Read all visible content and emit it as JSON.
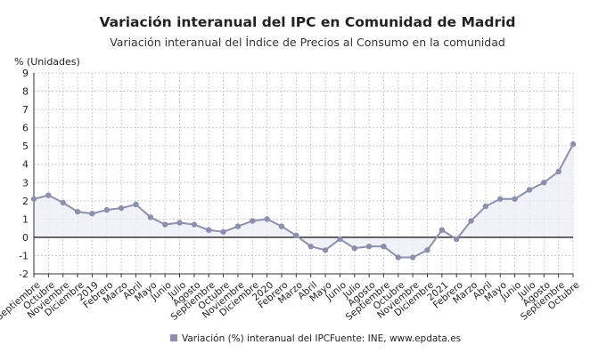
{
  "chart_data": {
    "type": "line",
    "title": "Variación interanual del IPC en Comunidad de Madrid",
    "subtitle": "Variación interanual del Índice de Precios al Consumo en la comunidad",
    "ylabel": "% (Unidades)",
    "ylim": [
      -2,
      9
    ],
    "yticks": [
      -2,
      -1,
      0,
      1,
      2,
      3,
      4,
      5,
      6,
      7,
      8,
      9
    ],
    "grid": true,
    "categories": [
      "Septiembre",
      "Octubre",
      "Noviembre",
      "Diciembre",
      "2019",
      "Febrero",
      "Marzo",
      "Abril",
      "Mayo",
      "Junio",
      "Julio",
      "Agosto",
      "Septiembre",
      "Octubre",
      "Noviembre",
      "Diciembre",
      "2020",
      "Febrero",
      "Marzo",
      "Abril",
      "Mayo",
      "Junio",
      "Julio",
      "Agosto",
      "Septiembre",
      "Octubre",
      "Noviembre",
      "Diciembre",
      "2021",
      "Febrero",
      "Marzo",
      "Abril",
      "Mayo",
      "Junio",
      "Julio",
      "Agosto",
      "Septiembre",
      "Octubre"
    ],
    "series": [
      {
        "name": "Variación (%) interanual del IPC",
        "color": "#8c8fb0",
        "values": [
          2.1,
          2.3,
          1.9,
          1.4,
          1.3,
          1.5,
          1.6,
          1.8,
          1.1,
          0.7,
          0.8,
          0.7,
          0.4,
          0.3,
          0.6,
          0.9,
          1.0,
          0.6,
          0.1,
          -0.5,
          -0.7,
          -0.1,
          -0.6,
          -0.5,
          -0.5,
          -1.1,
          -1.1,
          -0.7,
          0.4,
          -0.1,
          0.9,
          1.7,
          2.1,
          2.1,
          2.6,
          3.0,
          3.6,
          5.1
        ]
      }
    ],
    "legend_position": "bottom",
    "source": "Fuente: INE, www.epdata.es"
  }
}
